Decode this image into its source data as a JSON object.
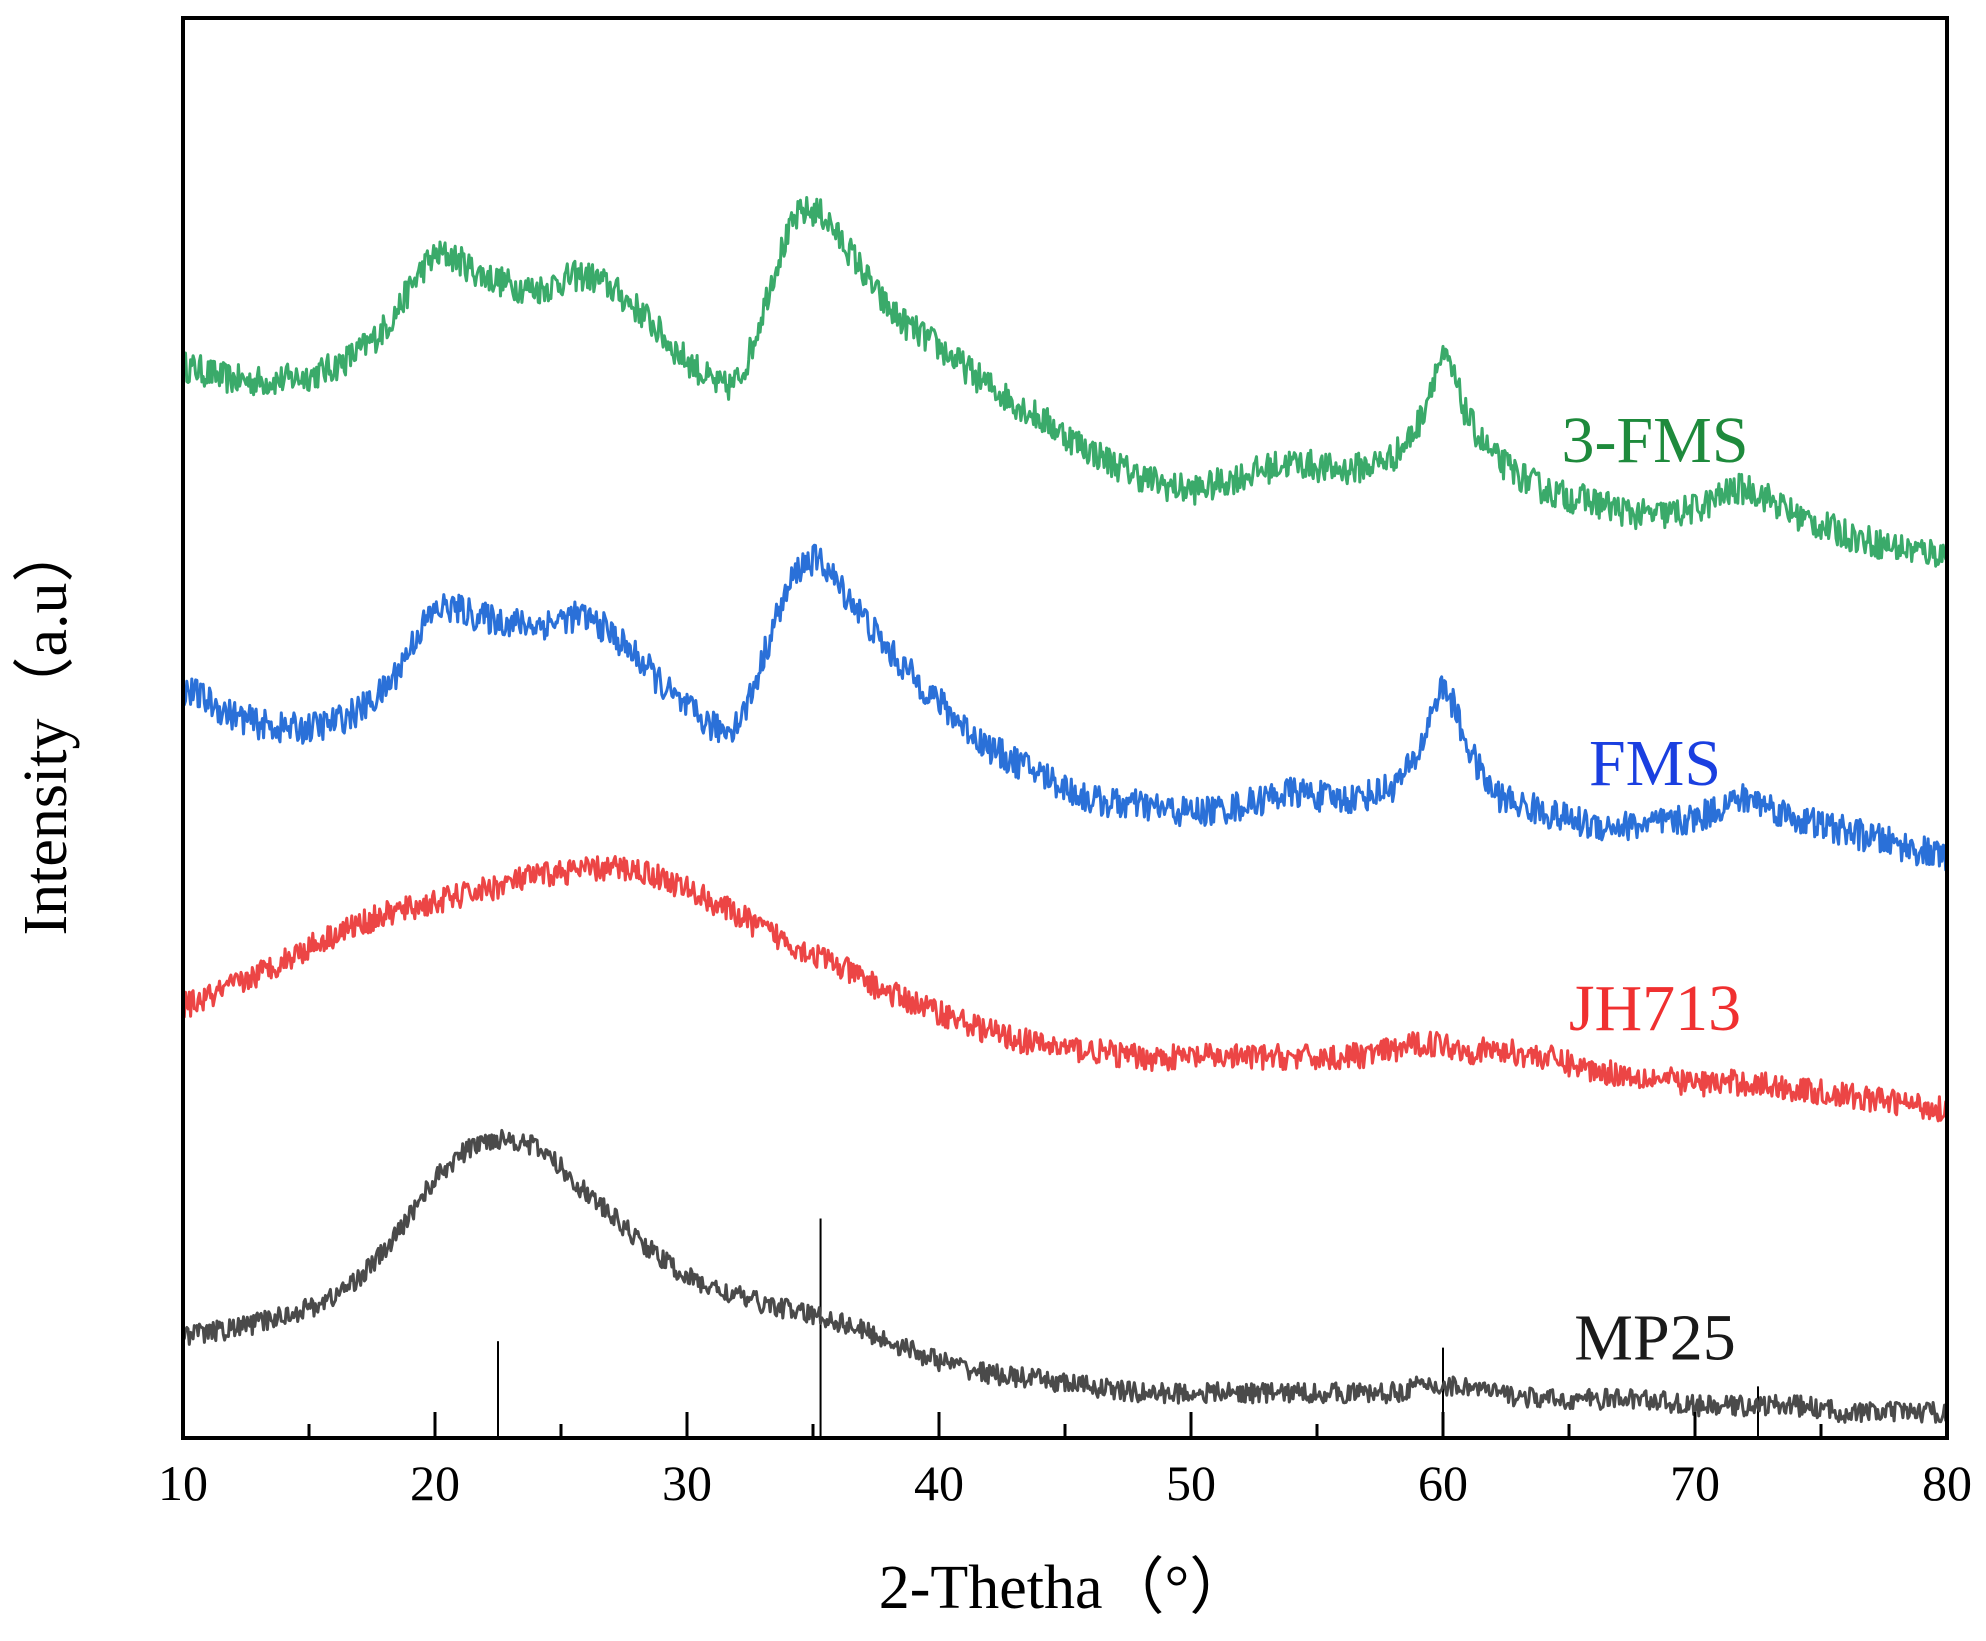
{
  "chart_data": {
    "type": "line",
    "title": "",
    "xlabel": "2-Thetha（°）",
    "ylabel": "Intensity（a.u）",
    "xlim": [
      10,
      80
    ],
    "ylim": [
      0,
      110
    ],
    "xticks": [
      10,
      20,
      30,
      40,
      50,
      60,
      70,
      80
    ],
    "xtick_labels": [
      "10",
      "20",
      "30",
      "40",
      "50",
      "60",
      "70",
      "80"
    ],
    "minor_xticks": [
      15,
      25,
      35,
      45,
      55,
      65,
      75
    ],
    "yticks": [],
    "grid": false,
    "legend": "inline labels at right",
    "x": [
      10,
      12,
      14,
      16,
      18,
      20,
      22,
      24,
      26,
      28,
      30,
      32,
      34,
      35,
      36,
      38,
      40,
      42,
      44,
      46,
      48,
      50,
      52,
      54,
      56,
      58,
      59,
      60,
      61,
      62,
      64,
      66,
      68,
      70,
      72,
      74,
      76,
      78,
      80
    ],
    "series": [
      {
        "name": "3-FMS",
        "color": "#3aaa6a",
        "label_color": "#1e8a3c",
        "noise": 1.2,
        "values": [
          83.0,
          82.0,
          82.0,
          83.0,
          86.0,
          91.5,
          90.0,
          89.0,
          90.0,
          87.5,
          83.5,
          82.0,
          93.0,
          95.0,
          93.0,
          87.5,
          84.5,
          81.5,
          79.0,
          76.5,
          74.5,
          73.5,
          74.5,
          75.5,
          75.0,
          76.0,
          78.5,
          83.5,
          79.0,
          76.0,
          73.5,
          72.5,
          71.5,
          72.0,
          73.5,
          71.5,
          70.0,
          69.0,
          68.5
        ]
      },
      {
        "name": "FMS",
        "color": "#2a70d8",
        "label_color": "#1a3fe0",
        "noise": 1.2,
        "values": [
          58.0,
          56.0,
          55.0,
          55.5,
          58.0,
          64.0,
          63.5,
          63.0,
          63.5,
          60.5,
          56.5,
          55.5,
          65.5,
          68.0,
          66.0,
          61.0,
          57.0,
          53.5,
          51.5,
          49.5,
          49.0,
          48.5,
          49.0,
          50.0,
          49.5,
          50.5,
          53.0,
          58.0,
          53.5,
          50.0,
          48.5,
          47.5,
          47.5,
          48.0,
          49.5,
          48.0,
          47.0,
          46.0,
          45.0
        ]
      },
      {
        "name": "JH713",
        "color": "#ec4545",
        "label_color": "#f03030",
        "noise": 1.0,
        "values": [
          33.5,
          35.0,
          37.0,
          39.0,
          40.5,
          41.5,
          42.5,
          43.5,
          44.0,
          44.0,
          42.5,
          40.5,
          38.5,
          37.5,
          36.5,
          34.5,
          33.0,
          31.5,
          30.5,
          30.0,
          29.5,
          29.5,
          29.5,
          29.5,
          29.5,
          30.0,
          30.5,
          30.5,
          30.0,
          30.0,
          29.5,
          28.5,
          28.0,
          27.5,
          27.5,
          27.0,
          26.5,
          26.0,
          25.5
        ]
      },
      {
        "name": "MP25",
        "color": "#4a4a4a",
        "label_color": "#1a1a1a",
        "noise": 0.8,
        "values": [
          8.0,
          8.5,
          9.5,
          11.0,
          14.5,
          20.0,
          23.0,
          22.5,
          19.0,
          15.5,
          12.5,
          11.0,
          10.0,
          9.5,
          9.0,
          7.5,
          6.0,
          5.0,
          4.5,
          4.0,
          3.5,
          3.5,
          3.5,
          3.5,
          3.5,
          3.5,
          4.0,
          4.0,
          4.0,
          3.5,
          3.0,
          3.0,
          3.0,
          2.5,
          2.5,
          2.5,
          2.0,
          2.0,
          2.0
        ]
      }
    ],
    "reference_lines": [
      {
        "x": 22.5,
        "height": 7.5
      },
      {
        "x": 35.3,
        "height": 17.0
      },
      {
        "x": 60.0,
        "height": 7.0
      },
      {
        "x": 72.5,
        "height": 4.0
      }
    ]
  }
}
